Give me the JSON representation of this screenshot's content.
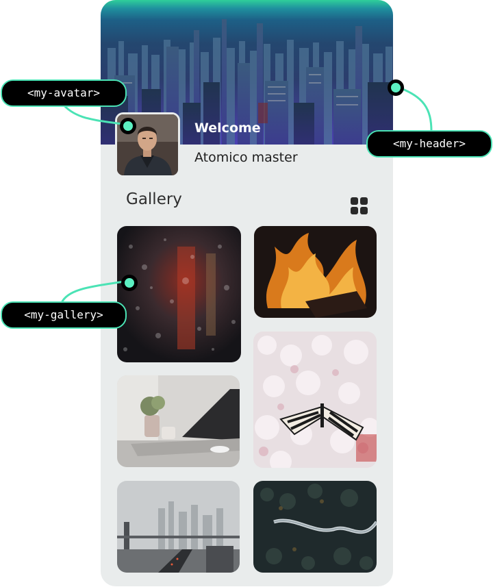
{
  "profile": {
    "welcome": "Welcome",
    "name": "Atomico master"
  },
  "gallery": {
    "title": "Gallery",
    "view_icon": "grid-icon",
    "photos": [
      {
        "subject": "rain-drops-on-glass"
      },
      {
        "subject": "fireplace-flames"
      },
      {
        "subject": "butterfly-on-white-flowers"
      },
      {
        "subject": "laptop-on-desk"
      },
      {
        "subject": "foggy-city-bridge"
      },
      {
        "subject": "aerial-forest-road"
      }
    ]
  },
  "annotations": {
    "avatar_tag": "<my-avatar>",
    "header_tag": "<my-header>",
    "gallery_tag": "<my-gallery>"
  },
  "colors": {
    "accent": "#4be3b5",
    "tag_background": "#000000",
    "card_background": "#e9ecec"
  }
}
